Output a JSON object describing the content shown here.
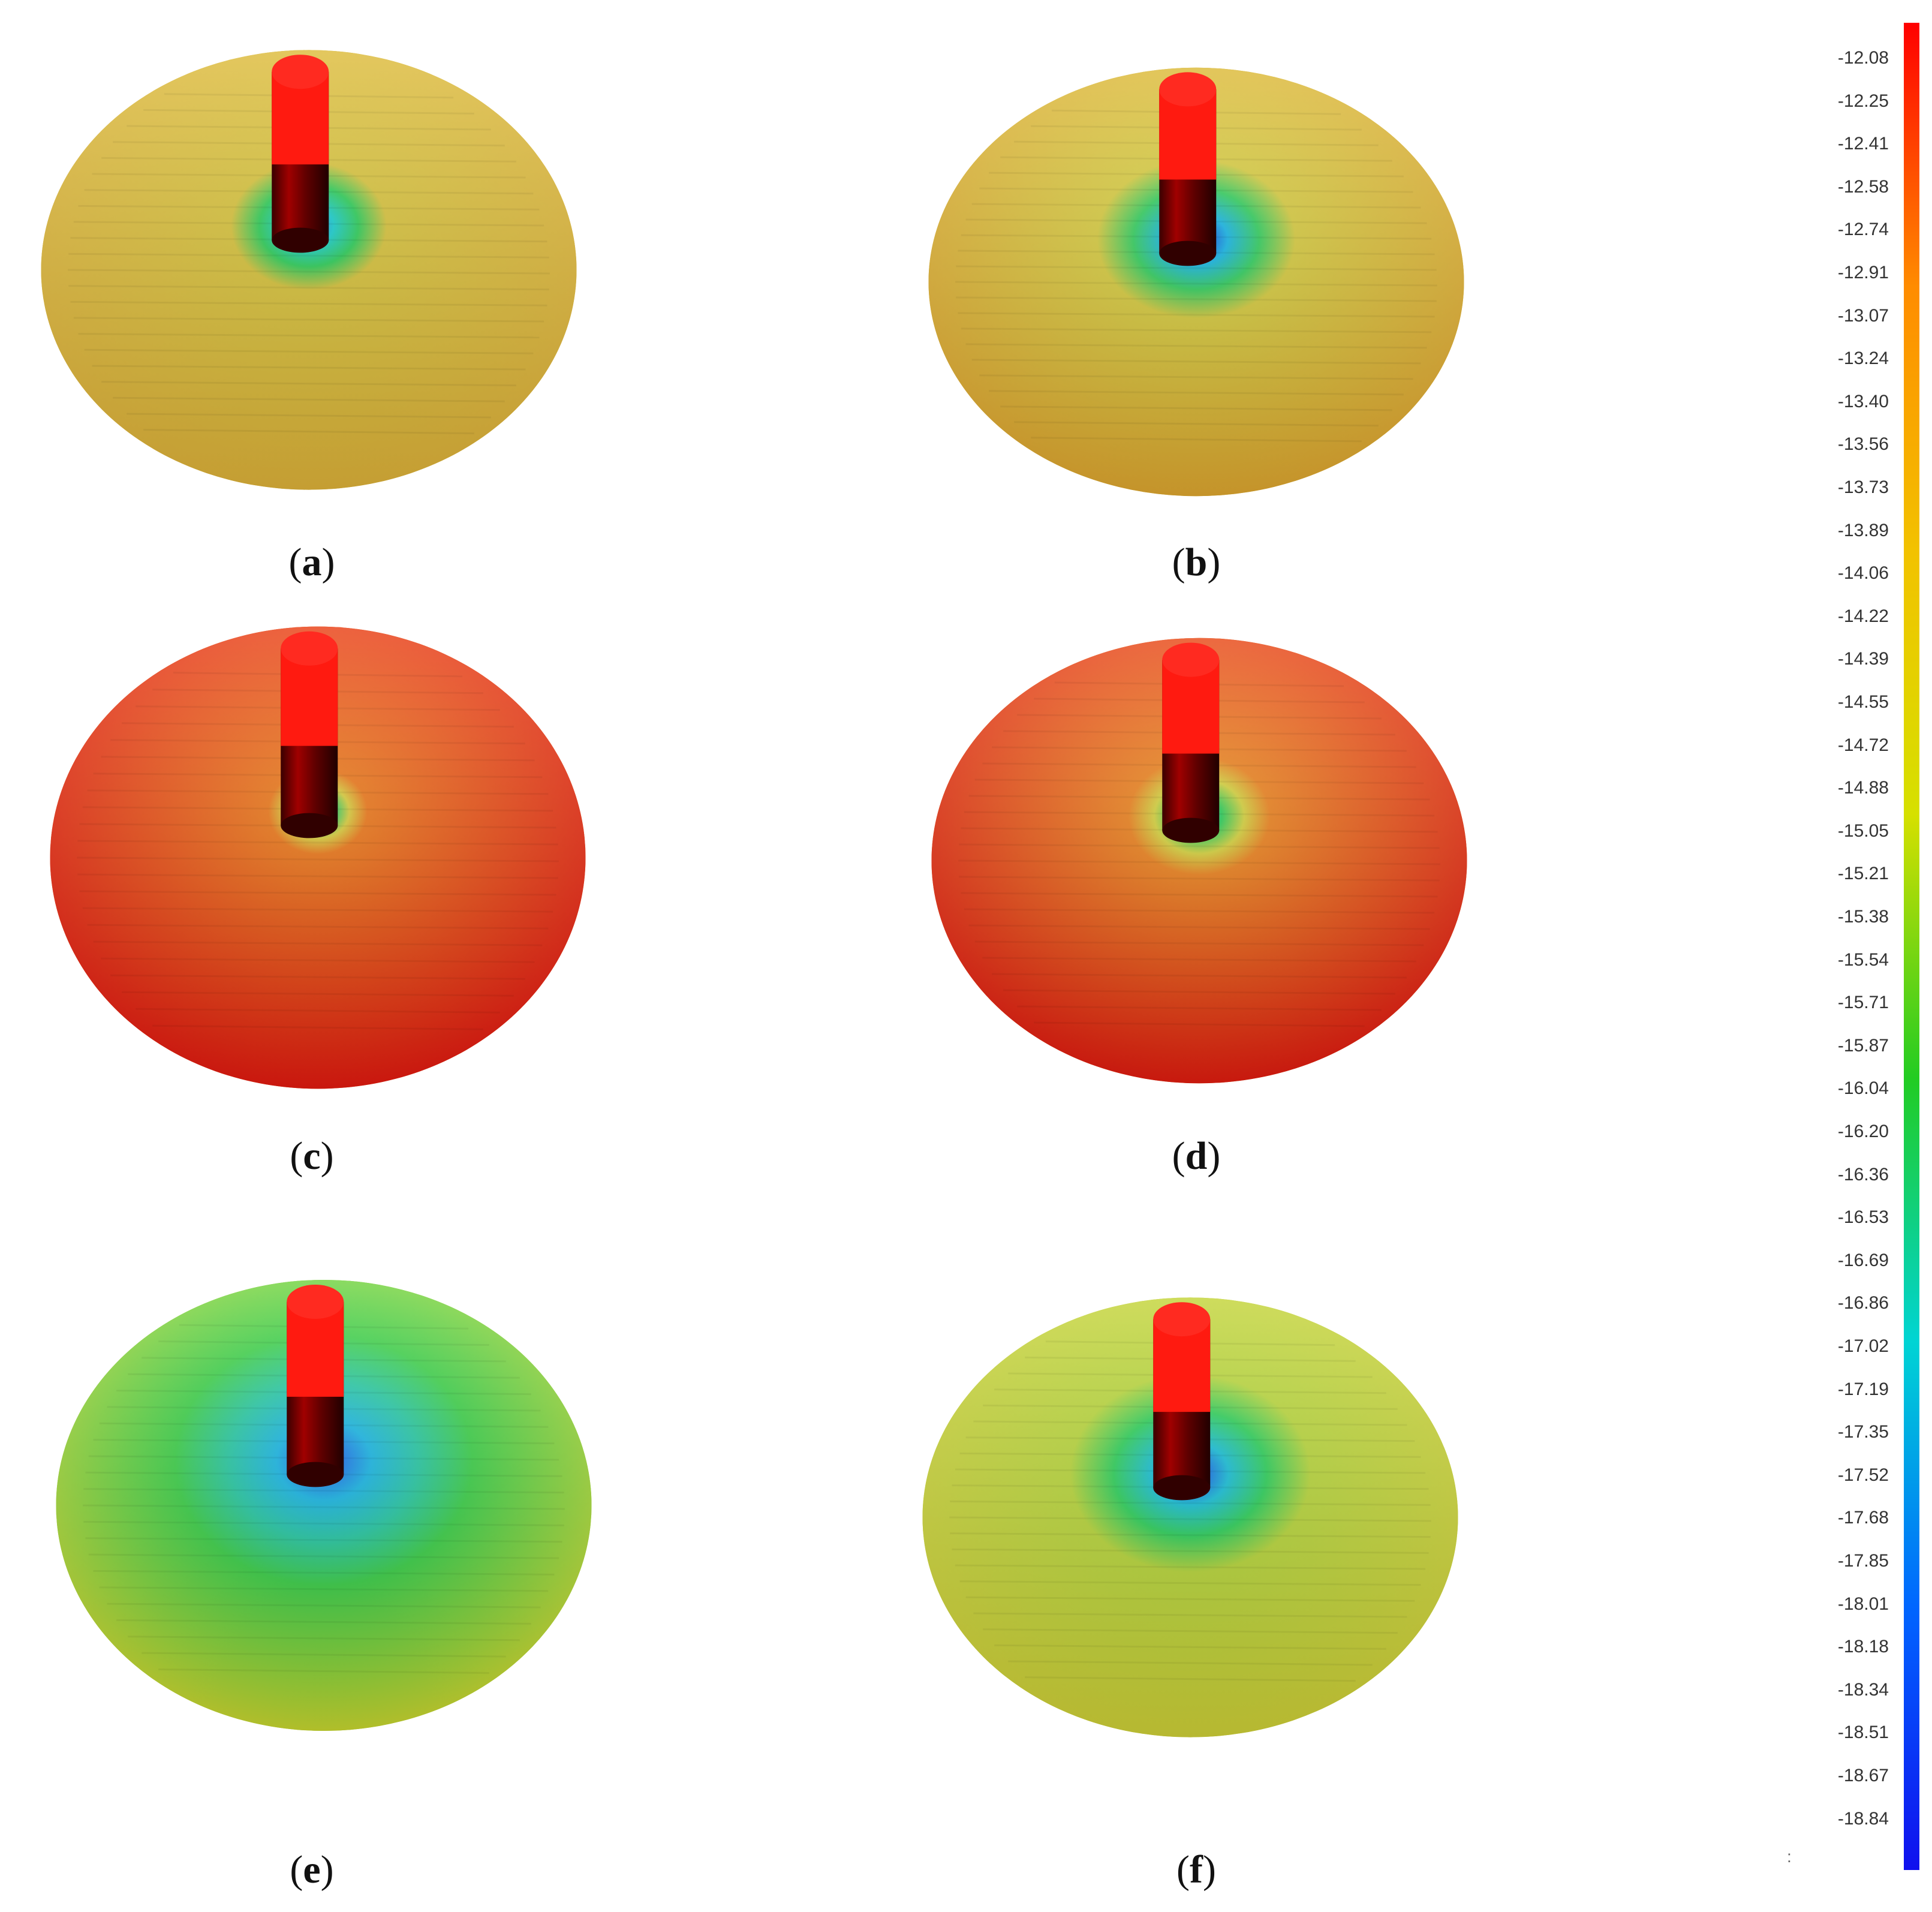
{
  "panels": [
    {
      "label": "a",
      "variant": "yellow-scour-small"
    },
    {
      "label": "b",
      "variant": "yellow-scour-deep"
    },
    {
      "label": "c",
      "variant": "red-mound-small"
    },
    {
      "label": "d",
      "variant": "red-mound-medium"
    },
    {
      "label": "e",
      "variant": "yellow-green-wide-scour"
    },
    {
      "label": "f",
      "variant": "yellow-green-scour"
    }
  ],
  "colorbar": {
    "ticks": [
      "-12.08",
      "-12.25",
      "-12.41",
      "-12.58",
      "-12.74",
      "-12.91",
      "-13.07",
      "-13.24",
      "-13.40",
      "-13.56",
      "-13.73",
      "-13.89",
      "-14.06",
      "-14.22",
      "-14.39",
      "-14.55",
      "-14.72",
      "-14.88",
      "-15.05",
      "-15.21",
      "-15.38",
      "-15.54",
      "-15.71",
      "-15.87",
      "-16.04",
      "-16.20",
      "-16.36",
      "-16.53",
      "-16.69",
      "-16.86",
      "-17.02",
      "-17.19",
      "-17.35",
      "-17.52",
      "-17.68",
      "-17.85",
      "-18.01",
      "-18.18",
      "-18.34",
      "-18.51",
      "-18.67",
      "-18.84"
    ],
    "colors": [
      "#ff0000",
      "#ff8c00",
      "#f2c200",
      "#d6e000",
      "#22cc22",
      "#00d4d4",
      "#0066ff",
      "#1010ee"
    ]
  },
  "stray_mark": ":"
}
